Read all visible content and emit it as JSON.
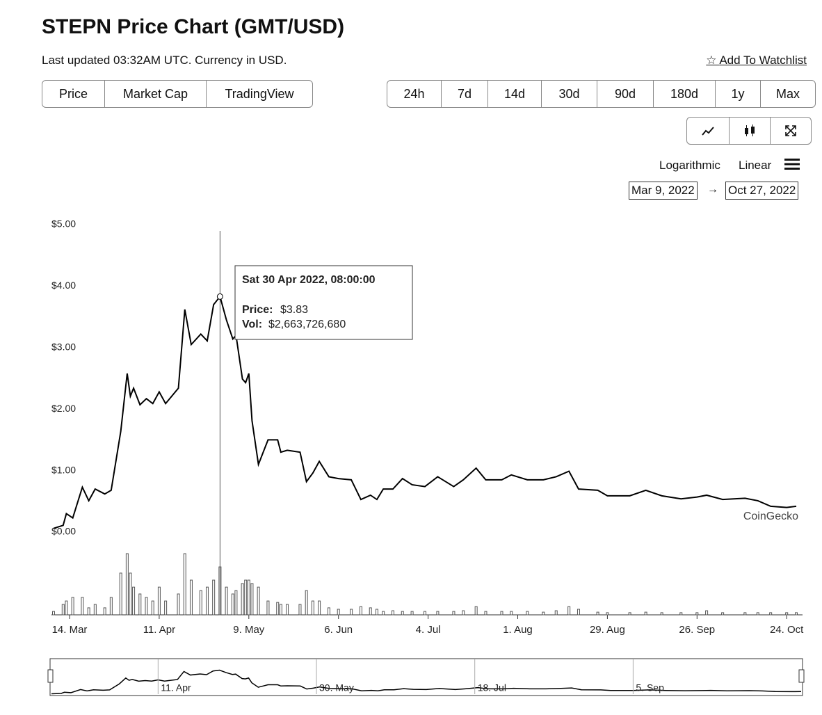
{
  "header": {
    "title": "STEPN Price Chart (GMT/USD)",
    "subtitle": "Last updated 03:32AM UTC. Currency in USD.",
    "watchlist": "Add To Watchlist"
  },
  "tabs": [
    "Price",
    "Market Cap",
    "TradingView"
  ],
  "ranges": [
    "24h",
    "7d",
    "14d",
    "30d",
    "90d",
    "180d",
    "1y",
    "Max"
  ],
  "scale_options": [
    "Logarithmic",
    "Linear"
  ],
  "date_range": {
    "from": "Mar 9, 2022",
    "to": "Oct 27, 2022"
  },
  "chart_data": {
    "type": "line",
    "x": [
      "2022-03-09",
      "2022-03-12",
      "2022-03-13",
      "2022-03-15",
      "2022-03-18",
      "2022-03-20",
      "2022-03-22",
      "2022-03-25",
      "2022-03-27",
      "2022-03-30",
      "2022-04-01",
      "2022-04-02",
      "2022-04-03",
      "2022-04-05",
      "2022-04-07",
      "2022-04-09",
      "2022-04-11",
      "2022-04-13",
      "2022-04-17",
      "2022-04-19",
      "2022-04-21",
      "2022-04-24",
      "2022-04-26",
      "2022-04-28",
      "2022-04-30",
      "2022-05-02",
      "2022-05-04",
      "2022-05-05",
      "2022-05-07",
      "2022-05-08",
      "2022-05-09",
      "2022-05-10",
      "2022-05-12",
      "2022-05-15",
      "2022-05-18",
      "2022-05-19",
      "2022-05-21",
      "2022-05-25",
      "2022-05-27",
      "2022-05-29",
      "2022-05-31",
      "2022-06-03",
      "2022-06-06",
      "2022-06-10",
      "2022-06-13",
      "2022-06-16",
      "2022-06-18",
      "2022-06-20",
      "2022-06-23",
      "2022-06-26",
      "2022-06-29",
      "2022-07-03",
      "2022-07-07",
      "2022-07-12",
      "2022-07-15",
      "2022-07-19",
      "2022-07-22",
      "2022-07-27",
      "2022-07-30",
      "2022-08-04",
      "2022-08-09",
      "2022-08-13",
      "2022-08-17",
      "2022-08-20",
      "2022-08-26",
      "2022-08-29",
      "2022-09-05",
      "2022-09-10",
      "2022-09-15",
      "2022-09-21",
      "2022-09-26",
      "2022-09-29",
      "2022-10-04",
      "2022-10-11",
      "2022-10-15",
      "2022-10-19",
      "2022-10-24",
      "2022-10-27"
    ],
    "series": [
      {
        "color": "#000000",
        "values": [
          0.06,
          0.11,
          0.3,
          0.23,
          0.73,
          0.51,
          0.7,
          0.62,
          0.68,
          1.64,
          2.58,
          2.21,
          2.34,
          2.07,
          2.17,
          2.09,
          2.28,
          2.09,
          2.34,
          3.62,
          3.05,
          3.22,
          3.11,
          3.7,
          3.83,
          3.45,
          3.14,
          3.2,
          2.49,
          2.43,
          2.58,
          1.81,
          1.1,
          1.5,
          1.5,
          1.3,
          1.33,
          1.3,
          0.82,
          0.96,
          1.15,
          0.9,
          0.87,
          0.85,
          0.53,
          0.6,
          0.53,
          0.7,
          0.7,
          0.87,
          0.77,
          0.74,
          0.9,
          0.74,
          0.85,
          1.04,
          0.85,
          0.85,
          0.93,
          0.85,
          0.85,
          0.9,
          0.99,
          0.7,
          0.68,
          0.59,
          0.59,
          0.68,
          0.59,
          0.54,
          0.57,
          0.6,
          0.53,
          0.55,
          0.51,
          0.42,
          0.4,
          0.42
        ]
      },
      {
        "type": "bar",
        "color": "#555555",
        "values": [
          190000000,
          580000000,
          770000000,
          970000000,
          970000000,
          390000000,
          580000000,
          390000000,
          970000000,
          2320000000,
          3400000000,
          2320000000,
          1540000000,
          1160000000,
          970000000,
          770000000,
          1540000000,
          770000000,
          1160000000,
          3400000000,
          1930000000,
          1350000000,
          1540000000,
          1930000000,
          2663726680,
          1540000000,
          1160000000,
          1350000000,
          1740000000,
          1930000000,
          1930000000,
          1740000000,
          1540000000,
          770000000,
          690000000,
          580000000,
          580000000,
          580000000,
          1350000000,
          770000000,
          770000000,
          390000000,
          310000000,
          310000000,
          460000000,
          390000000,
          310000000,
          190000000,
          230000000,
          190000000,
          190000000,
          190000000,
          190000000,
          190000000,
          230000000,
          460000000,
          190000000,
          190000000,
          190000000,
          190000000,
          150000000,
          230000000,
          460000000,
          310000000,
          150000000,
          120000000,
          120000000,
          150000000,
          120000000,
          120000000,
          120000000,
          230000000,
          120000000,
          120000000,
          120000000,
          120000000,
          120000000,
          120000000
        ]
      }
    ],
    "xlim": [
      "2022-03-09",
      "2022-10-27"
    ],
    "xticks": [
      {
        "value": "2022-03-14",
        "label": "14. Mar"
      },
      {
        "value": "2022-04-11",
        "label": "11. Apr"
      },
      {
        "value": "2022-05-09",
        "label": "9. May"
      },
      {
        "value": "2022-06-06",
        "label": "6. Jun"
      },
      {
        "value": "2022-07-04",
        "label": "4. Jul"
      },
      {
        "value": "2022-08-01",
        "label": "1. Aug"
      },
      {
        "value": "2022-08-29",
        "label": "29. Aug"
      },
      {
        "value": "2022-09-26",
        "label": "26. Sep"
      },
      {
        "value": "2022-10-24",
        "label": "24. Oct"
      }
    ],
    "ylim": [
      0,
      5
    ],
    "yticks": [
      {
        "value": 0,
        "label": "$0.00"
      },
      {
        "value": 1,
        "label": "$1.00"
      },
      {
        "value": 2,
        "label": "$2.00"
      },
      {
        "value": 3,
        "label": "$3.00"
      },
      {
        "value": 4,
        "label": "$4.00"
      },
      {
        "value": 5,
        "label": "$5.00"
      }
    ],
    "grid": false,
    "tooltip": {
      "x": "2022-04-30",
      "date": "Sat 30 Apr 2022, 08:00:00",
      "price_label": "Price:",
      "price": "$3.83",
      "vol_label": "Vol:",
      "vol": "$2,663,726,680"
    },
    "watermark": "CoinGecko",
    "navigator_ticks": [
      {
        "value": "2022-04-11",
        "label": "11. Apr"
      },
      {
        "value": "2022-05-30",
        "label": "30. May"
      },
      {
        "value": "2022-07-18",
        "label": "18. Jul"
      },
      {
        "value": "2022-09-05",
        "label": "5. Sep"
      }
    ]
  }
}
